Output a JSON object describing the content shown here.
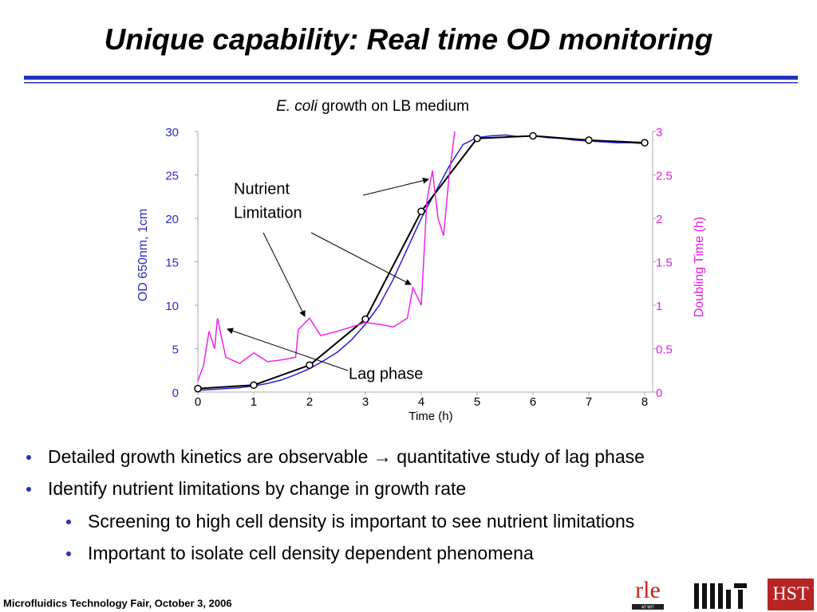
{
  "header": {
    "title": "Unique capability: Real time OD monitoring"
  },
  "chart_data": {
    "type": "line",
    "title_italic": "E. coli",
    "title": "growth on LB medium",
    "xlabel": "Time (h)",
    "ylabel": "OD 650nm, 1cm",
    "y2label": "Doubling Time (h)",
    "xlim": [
      0,
      8
    ],
    "xticks": [
      0,
      1,
      2,
      3,
      4,
      5,
      6,
      7,
      8
    ],
    "ylim": [
      0,
      30
    ],
    "yticks": [
      0,
      5,
      10,
      15,
      20,
      25,
      30
    ],
    "y2lim": [
      0,
      3
    ],
    "y2ticks": [
      0,
      0.5,
      1,
      1.5,
      2,
      2.5,
      3
    ],
    "ycolor": "#2a2ad0",
    "y2color": "#e020e0",
    "grid": false,
    "series": [
      {
        "color": "#2222dd",
        "x": [
          0,
          0.25,
          0.5,
          0.75,
          1,
          1.25,
          1.5,
          1.75,
          2,
          2.25,
          2.5,
          2.75,
          3,
          3.25,
          3.5,
          3.75,
          4,
          4.25,
          4.5,
          4.75,
          5,
          5.25,
          5.5,
          5.75,
          6,
          6.25,
          6.5,
          6.75,
          7,
          7.25,
          7.5,
          7.75,
          8
        ],
        "values": [
          0.2,
          0.3,
          0.4,
          0.5,
          0.7,
          1.0,
          1.4,
          2.0,
          2.7,
          3.6,
          4.6,
          6.0,
          7.8,
          10,
          13,
          16.5,
          20,
          23,
          26,
          28.5,
          29.3,
          29.5,
          29.6,
          29.4,
          29.5,
          29.3,
          29.2,
          29.0,
          28.9,
          28.8,
          28.7,
          28.7,
          28.6
        ]
      },
      {
        "color": "#000000",
        "markers": true,
        "x": [
          0,
          1,
          2,
          3,
          4,
          5,
          6,
          7,
          8
        ],
        "values": [
          0.4,
          0.8,
          3.1,
          8.4,
          20.8,
          29.2,
          29.5,
          29.0,
          28.7
        ]
      },
      {
        "color": "#ee22ee",
        "axis": "y2",
        "x": [
          0,
          0.1,
          0.2,
          0.3,
          0.35,
          0.5,
          0.75,
          1,
          1.25,
          1.5,
          1.75,
          1.8,
          2,
          2.2,
          2.5,
          2.75,
          3,
          3.25,
          3.5,
          3.75,
          3.85,
          4,
          4.1,
          4.2,
          4.3,
          4.4,
          4.5,
          4.6
        ],
        "values": [
          0.13,
          0.3,
          0.7,
          0.5,
          0.85,
          0.4,
          0.33,
          0.45,
          0.35,
          0.37,
          0.4,
          0.72,
          0.85,
          0.65,
          0.7,
          0.75,
          0.8,
          0.78,
          0.75,
          0.85,
          1.2,
          1.0,
          2.2,
          2.55,
          2.0,
          1.8,
          2.5,
          3.0
        ]
      }
    ],
    "annotations": [
      {
        "lines": [
          "Nutrient",
          "Limitation"
        ]
      },
      {
        "lines": [
          "Lag phase"
        ]
      }
    ]
  },
  "bullets": [
    {
      "text": "Detailed growth kinetics are observable → quantitative study of lag phase",
      "level": 1
    },
    {
      "text": "Identify nutrient limitations by change in growth rate",
      "level": 1
    },
    {
      "text": "Screening to high cell density is important to see nutrient limitations",
      "level": 2
    },
    {
      "text": "Important to isolate cell density dependent phenomena",
      "level": 2
    }
  ],
  "footer": "Microfluidics Technology Fair, October 3, 2006",
  "logos": {
    "rle": "rle",
    "rle_sub": "AT MIT",
    "hst": "HST"
  }
}
